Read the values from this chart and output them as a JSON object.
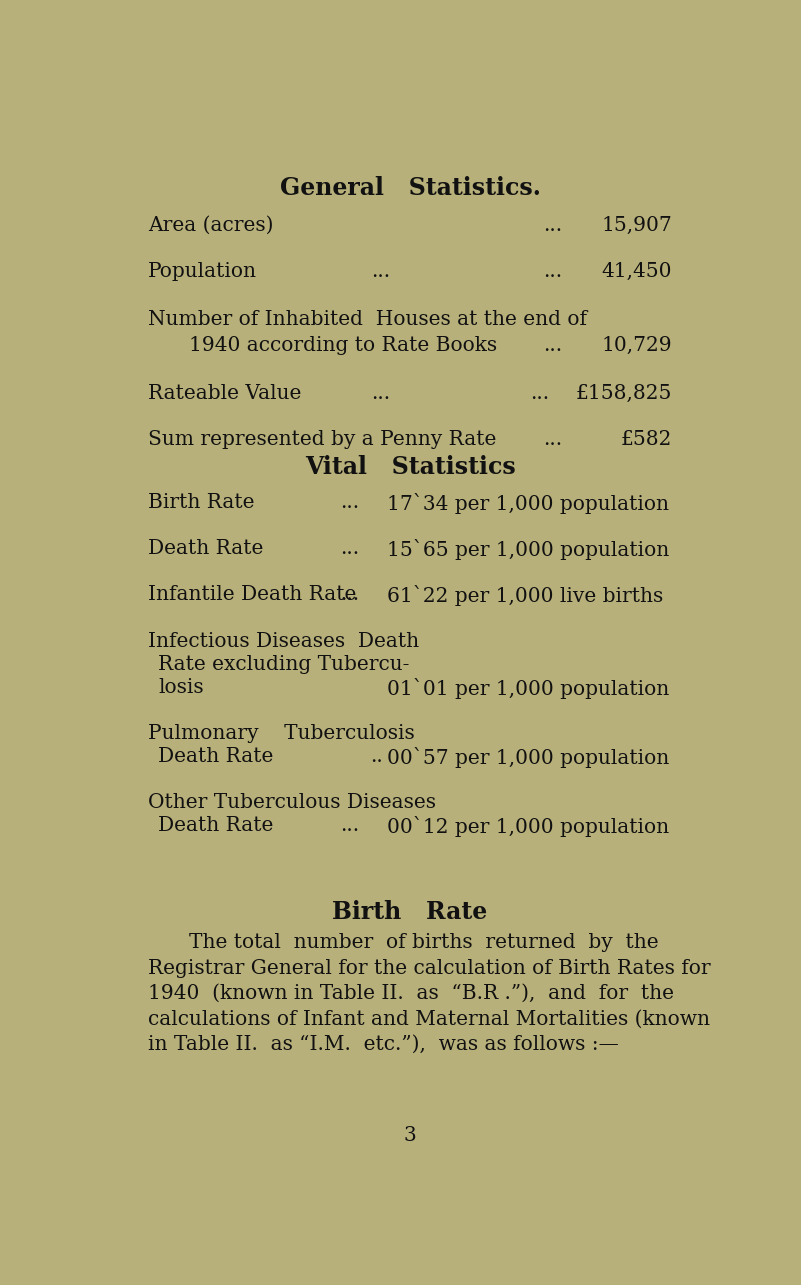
{
  "bg_color": "#b8b07a",
  "text_color": "#111111",
  "title1": "General   Statistics.",
  "title2": "Vital   Statistics",
  "title3": "Birth   Rate",
  "page_number": "3"
}
